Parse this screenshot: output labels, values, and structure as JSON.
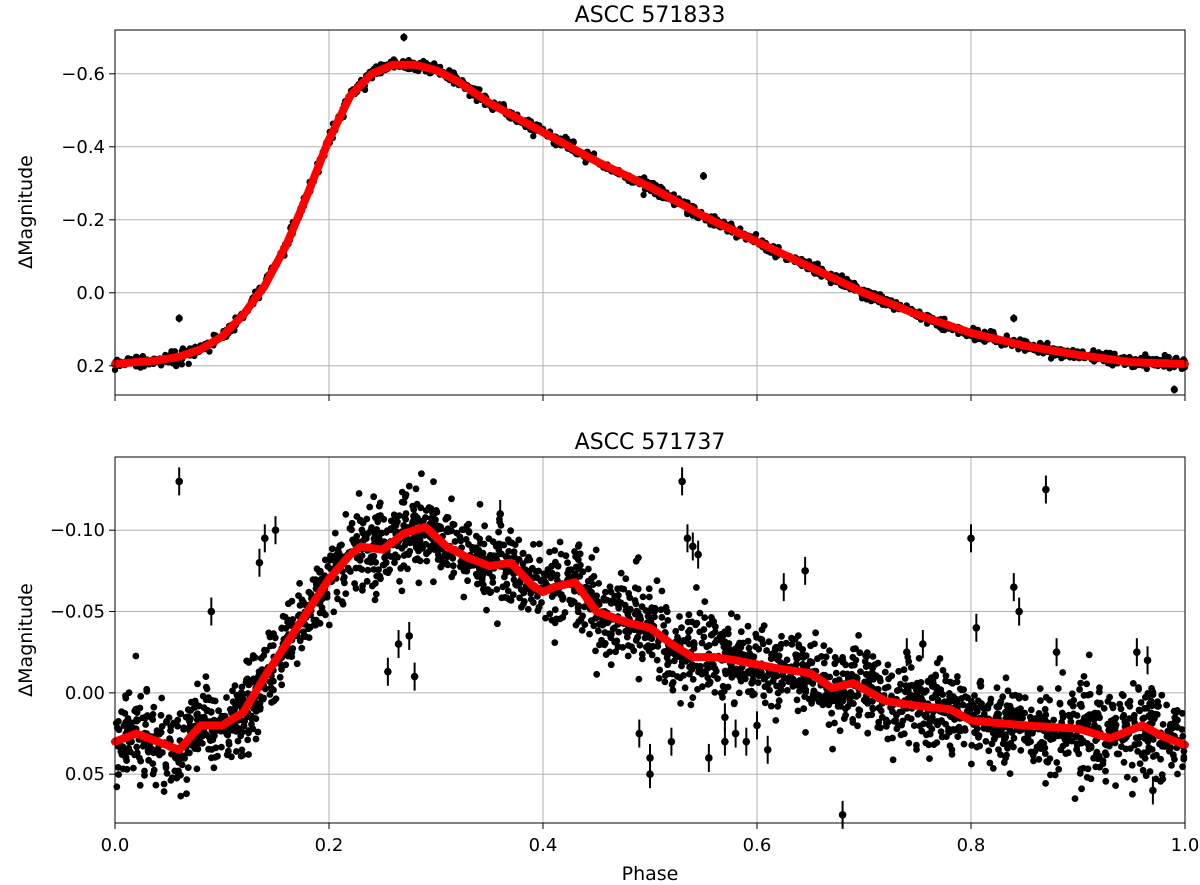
{
  "chart_data": [
    {
      "type": "scatter",
      "title": "ASCC 571833",
      "xlabel": "",
      "ylabel": "ΔMagnitude",
      "xlim": [
        0.0,
        1.0
      ],
      "ylim": [
        0.28,
        -0.72
      ],
      "y_inverted": true,
      "grid": true,
      "xticks": [
        0.0,
        0.2,
        0.4,
        0.6,
        0.8,
        1.0
      ],
      "xtick_labels_visible": false,
      "yticks": [
        -0.6,
        -0.4,
        -0.2,
        0.0,
        0.2
      ],
      "ytick_labels": [
        "−0.6",
        "−0.4",
        "−0.2",
        "0.0",
        "0.2"
      ],
      "point_color": "#000000",
      "fit_color": "#ff0000",
      "noise": 0.008,
      "fit_curve": {
        "x": [
          0.0,
          0.02,
          0.04,
          0.06,
          0.08,
          0.1,
          0.12,
          0.14,
          0.16,
          0.18,
          0.2,
          0.22,
          0.24,
          0.26,
          0.28,
          0.3,
          0.32,
          0.35,
          0.4,
          0.45,
          0.5,
          0.55,
          0.6,
          0.65,
          0.7,
          0.75,
          0.8,
          0.85,
          0.9,
          0.95,
          1.0
        ],
        "y": [
          0.195,
          0.19,
          0.185,
          0.175,
          0.155,
          0.12,
          0.06,
          -0.02,
          -0.13,
          -0.27,
          -0.42,
          -0.54,
          -0.6,
          -0.625,
          -0.625,
          -0.61,
          -0.58,
          -0.52,
          -0.44,
          -0.36,
          -0.29,
          -0.21,
          -0.14,
          -0.07,
          0.0,
          0.06,
          0.11,
          0.145,
          0.17,
          0.19,
          0.195
        ]
      },
      "outliers": {
        "x": [
          0.06,
          0.27,
          0.55,
          0.99,
          0.84
        ],
        "y": [
          0.07,
          -0.7,
          -0.32,
          0.265,
          0.07
        ]
      }
    },
    {
      "type": "scatter",
      "title": "ASCC 571737",
      "xlabel": "Phase",
      "ylabel": "ΔMagnitude",
      "xlim": [
        0.0,
        1.0
      ],
      "ylim": [
        0.08,
        -0.145
      ],
      "y_inverted": true,
      "grid": true,
      "xticks": [
        0.0,
        0.2,
        0.4,
        0.6,
        0.8,
        1.0
      ],
      "xtick_labels": [
        "0.0",
        "0.2",
        "0.4",
        "0.6",
        "0.8",
        "1.0"
      ],
      "yticks": [
        -0.1,
        -0.05,
        0.0,
        0.05
      ],
      "ytick_labels": [
        "−0.10",
        "−0.05",
        "0.00",
        "0.05"
      ],
      "point_color": "#000000",
      "fit_color": "#ff0000",
      "noise": 0.013,
      "fit_curve": {
        "x": [
          0.0,
          0.02,
          0.04,
          0.06,
          0.08,
          0.1,
          0.12,
          0.14,
          0.16,
          0.18,
          0.2,
          0.22,
          0.23,
          0.25,
          0.27,
          0.29,
          0.31,
          0.33,
          0.35,
          0.37,
          0.39,
          0.4,
          0.41,
          0.43,
          0.45,
          0.48,
          0.5,
          0.52,
          0.54,
          0.56,
          0.58,
          0.62,
          0.65,
          0.67,
          0.69,
          0.72,
          0.75,
          0.78,
          0.8,
          0.85,
          0.9,
          0.93,
          0.96,
          0.98,
          1.0
        ],
        "y": [
          0.03,
          0.025,
          0.03,
          0.035,
          0.02,
          0.02,
          0.012,
          -0.01,
          -0.03,
          -0.05,
          -0.07,
          -0.085,
          -0.09,
          -0.088,
          -0.098,
          -0.102,
          -0.09,
          -0.083,
          -0.078,
          -0.08,
          -0.066,
          -0.062,
          -0.065,
          -0.068,
          -0.05,
          -0.043,
          -0.04,
          -0.03,
          -0.022,
          -0.022,
          -0.02,
          -0.015,
          -0.012,
          -0.003,
          -0.006,
          0.005,
          0.008,
          0.01,
          0.017,
          0.02,
          0.022,
          0.028,
          0.02,
          0.027,
          0.032
        ]
      },
      "outliers": {
        "x": [
          0.06,
          0.09,
          0.135,
          0.14,
          0.15,
          0.255,
          0.265,
          0.275,
          0.28,
          0.36,
          0.53,
          0.535,
          0.54,
          0.545,
          0.49,
          0.5,
          0.555,
          0.57,
          0.59,
          0.625,
          0.645,
          0.68,
          0.74,
          0.755,
          0.8,
          0.805,
          0.84,
          0.845,
          0.87,
          0.88,
          0.955,
          0.965,
          0.97,
          0.5,
          0.52,
          0.6,
          0.61,
          0.57,
          0.58
        ],
        "y": [
          -0.13,
          -0.05,
          -0.08,
          -0.095,
          -0.1,
          -0.013,
          -0.03,
          -0.035,
          -0.01,
          -0.11,
          -0.13,
          -0.095,
          -0.09,
          -0.085,
          0.025,
          0.05,
          0.04,
          0.03,
          0.03,
          -0.065,
          -0.075,
          0.075,
          -0.025,
          -0.03,
          -0.095,
          -0.04,
          -0.065,
          -0.05,
          -0.125,
          -0.025,
          -0.025,
          -0.02,
          0.06,
          0.04,
          0.03,
          0.02,
          0.035,
          0.015,
          0.025
        ]
      }
    }
  ]
}
